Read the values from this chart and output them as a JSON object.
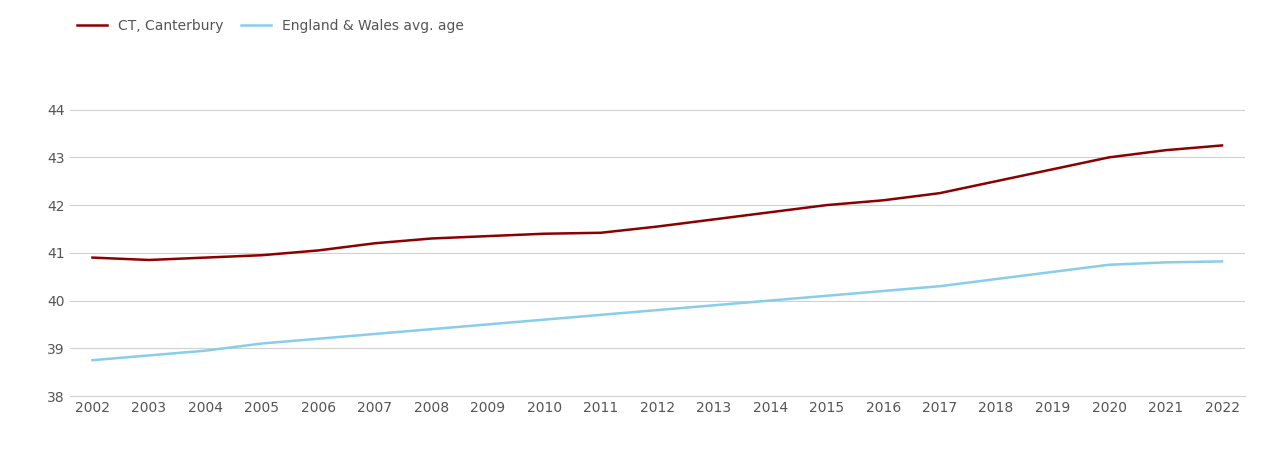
{
  "years": [
    2002,
    2003,
    2004,
    2005,
    2006,
    2007,
    2008,
    2009,
    2010,
    2011,
    2012,
    2013,
    2014,
    2015,
    2016,
    2017,
    2018,
    2019,
    2020,
    2021,
    2022
  ],
  "canterbury": [
    40.9,
    40.85,
    40.9,
    40.95,
    41.05,
    41.2,
    41.3,
    41.35,
    41.4,
    41.42,
    41.55,
    41.7,
    41.85,
    42.0,
    42.1,
    42.25,
    42.5,
    42.75,
    43.0,
    43.15,
    43.25
  ],
  "england_wales": [
    38.75,
    38.85,
    38.95,
    39.1,
    39.2,
    39.3,
    39.4,
    39.5,
    39.6,
    39.7,
    39.8,
    39.9,
    40.0,
    40.1,
    40.2,
    40.3,
    40.45,
    40.6,
    40.75,
    40.8,
    40.82
  ],
  "canterbury_color": "#8B0000",
  "england_wales_color": "#87CEEB",
  "background_color": "#ffffff",
  "plot_background": "#ffffff",
  "grid_color": "#d0d0d0",
  "spine_color": "#d0d0d0",
  "tick_label_color": "#555555",
  "legend_ct": "CT, Canterbury",
  "legend_ew": "England & Wales avg. age",
  "ylim_min": 38,
  "ylim_max": 44.6,
  "yticks": [
    38,
    39,
    40,
    41,
    42,
    43,
    44
  ],
  "line_width": 1.8,
  "legend_fontsize": 10,
  "tick_fontsize": 10
}
